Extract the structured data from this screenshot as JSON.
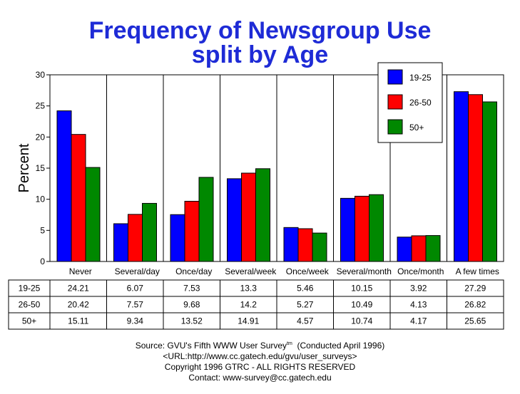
{
  "chart_data": {
    "type": "bar",
    "title": "Frequency of Newsgroup Use",
    "subtitle": "split by Age",
    "ylabel": "Percent",
    "ylim": [
      0,
      30
    ],
    "yticks": [
      "0",
      "5",
      "10",
      "15",
      "20",
      "25",
      "30"
    ],
    "categories": [
      "Never",
      "Several/day",
      "Once/day",
      "Several/week",
      "Once/week",
      "Several/month",
      "Once/month",
      "A few times"
    ],
    "series": [
      {
        "name": "19-25",
        "color": "#0000ff",
        "values": [
          24.21,
          6.07,
          7.53,
          13.3,
          5.46,
          10.15,
          3.92,
          27.29
        ]
      },
      {
        "name": "26-50",
        "color": "#ff0000",
        "values": [
          20.42,
          7.57,
          9.68,
          14.2,
          5.27,
          10.49,
          4.13,
          26.82
        ]
      },
      {
        "name": "50+",
        "color": "#008800",
        "values": [
          15.11,
          9.34,
          13.52,
          14.91,
          4.57,
          10.74,
          4.17,
          25.65
        ]
      }
    ],
    "table": [
      {
        "label": "19-25",
        "values": [
          "24.21",
          "6.07",
          "7.53",
          "13.3",
          "5.46",
          "10.15",
          "3.92",
          "27.29"
        ]
      },
      {
        "label": "26-50",
        "values": [
          "20.42",
          "7.57",
          "9.68",
          "14.2",
          "5.27",
          "10.49",
          "4.13",
          "26.82"
        ]
      },
      {
        "label": "50+",
        "values": [
          "15.11",
          "9.34",
          "13.52",
          "14.91",
          "4.57",
          "10.74",
          "4.17",
          "25.65"
        ]
      }
    ],
    "legend_position": "top-right",
    "grid": "vertical"
  },
  "footer": {
    "source": "Source: GVU's Fifth WWW User Survey",
    "superscript": "tm",
    "conducted": "(Conducted April 1996)",
    "url": "<URL:http://www.cc.gatech.edu/gvu/user_surveys>",
    "copyright": "Copyright 1996 GTRC -  ALL RIGHTS RESERVED",
    "contact": "Contact: www-survey@cc.gatech.edu"
  }
}
